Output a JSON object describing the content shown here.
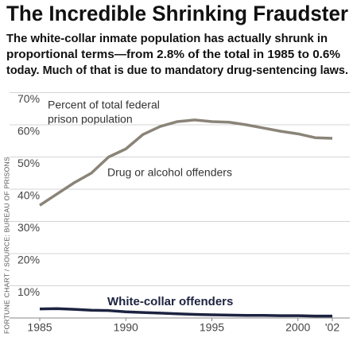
{
  "chart_data": {
    "type": "line",
    "title": "The Incredible Shrinking Fraudster",
    "subtitle": [
      "The white-collar inmate population has actually shrunk in",
      "proportional terms—from 2.8% of the total in 1985 to 0.6%",
      "today. Much of that is due to mandatory drug-sentencing laws."
    ],
    "y_label": [
      "Percent of total federal",
      "prison population"
    ],
    "source": "FORTUNE CHART / SOURCE: BUREAU OF PRISONS",
    "x": [
      1985,
      1986,
      1987,
      1988,
      1989,
      1990,
      1991,
      1992,
      1993,
      1994,
      1995,
      1996,
      1997,
      1998,
      1999,
      2000,
      2001,
      2002
    ],
    "series": [
      {
        "name": "Drug or alcohol offenders",
        "color": "#8a8478",
        "values": [
          35,
          38.5,
          42,
          45,
          50,
          52.5,
          57,
          59.5,
          61,
          61.5,
          61,
          60.8,
          60,
          59,
          58,
          57.2,
          56,
          55.8
        ]
      },
      {
        "name": "White-collar offenders",
        "color": "#1c2340",
        "values": [
          2.8,
          2.9,
          2.7,
          2.4,
          2.3,
          1.9,
          1.7,
          1.5,
          1.3,
          1.1,
          1.0,
          0.9,
          0.8,
          0.8,
          0.7,
          0.7,
          0.6,
          0.6
        ]
      }
    ],
    "xlim": [
      1985,
      2002
    ],
    "xticks": [
      1985,
      1990,
      1995,
      2000,
      {
        "value": 2002,
        "label": "'02"
      }
    ],
    "ylim": [
      0,
      70
    ],
    "yticks": [
      {
        "value": 10,
        "label": "10%"
      },
      {
        "value": 20,
        "label": "20%"
      },
      {
        "value": 30,
        "label": "30%"
      },
      {
        "value": 40,
        "label": "40%"
      },
      {
        "value": 50,
        "label": "50%"
      },
      {
        "value": 60,
        "label": "60%"
      },
      {
        "value": 70,
        "label": "70%"
      }
    ],
    "grid": true
  }
}
